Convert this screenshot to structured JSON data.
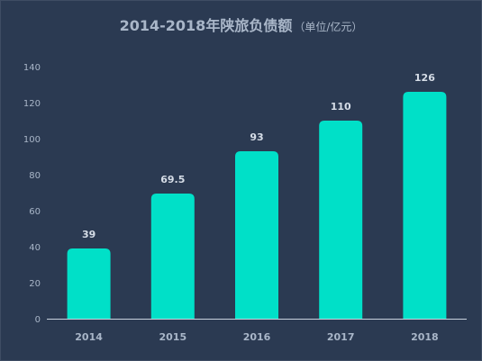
{
  "chart_data": {
    "type": "bar",
    "title": "2014-2018年陕旅负债额",
    "subtitle": "（单位/亿元）",
    "categories": [
      "2014",
      "2015",
      "2016",
      "2017",
      "2018"
    ],
    "values": [
      39,
      69.5,
      93,
      110,
      126
    ],
    "data_labels": [
      "39",
      "69.5",
      "93",
      "110",
      "126"
    ],
    "yticks": [
      0,
      20,
      40,
      60,
      80,
      100,
      120,
      140
    ],
    "ylim": [
      0,
      140
    ],
    "xlabel": "",
    "ylabel": "",
    "grid": false,
    "legend": "none",
    "bar_color": "#00e0c8",
    "background_color": "#2b3a52",
    "text_color": "#a9b6c8"
  }
}
